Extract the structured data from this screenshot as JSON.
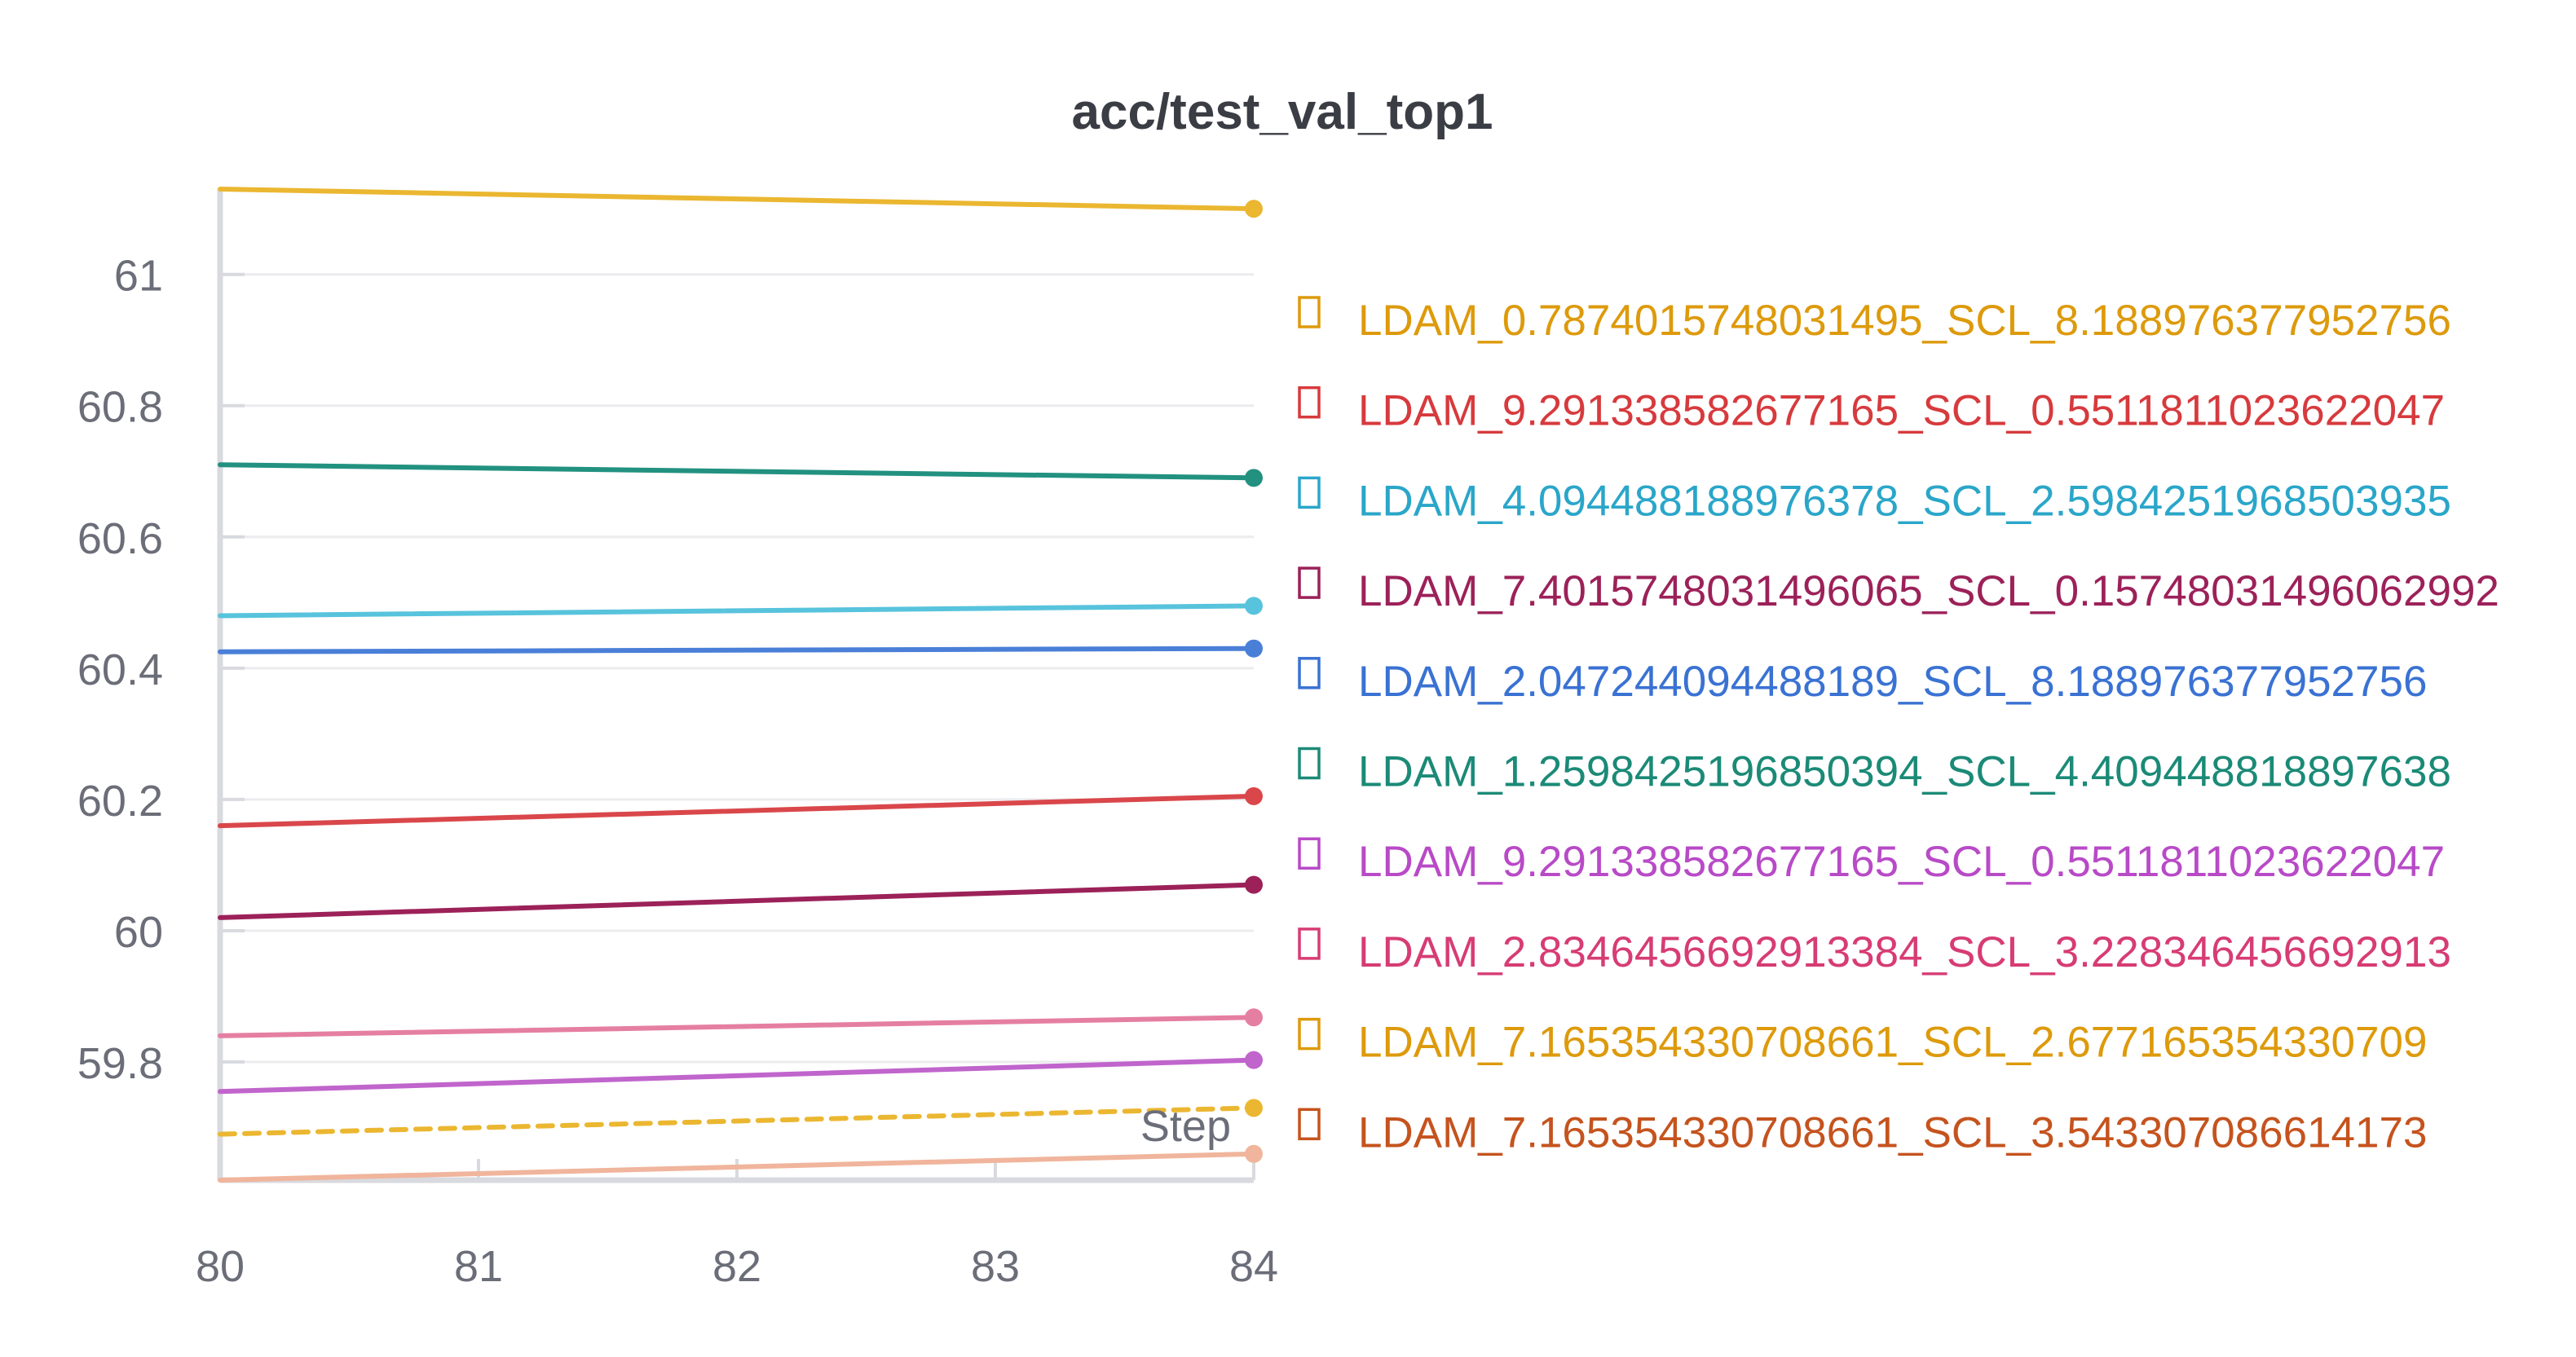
{
  "chart_data": {
    "type": "line",
    "title": "acc/test_val_top1",
    "xlabel": "Step",
    "ylabel": "",
    "xlim": [
      80,
      84
    ],
    "ylim": [
      59.62,
      61.13
    ],
    "x_ticks": [
      80,
      81,
      82,
      83,
      84
    ],
    "y_ticks": [
      59.8,
      60,
      60.2,
      60.4,
      60.6,
      60.8,
      61
    ],
    "y_tick_labels": [
      "59.8",
      "60",
      "60.2",
      "60.4",
      "60.6",
      "60.8",
      "61"
    ],
    "grid": true,
    "legend_position": "right",
    "series": [
      {
        "name": "LDAM_0.7874015748031495_SCL_8.188976377952756",
        "line_color": "#ebb731",
        "text_color": "#dd9a0b",
        "dashed": false,
        "x": [
          80,
          84
        ],
        "y": [
          61.13,
          61.1
        ]
      },
      {
        "name": "LDAM_9.291338582677165_SCL_0.5511811023622047",
        "line_color": "#d9474b",
        "text_color": "#d73a3d",
        "dashed": false,
        "x": [
          80,
          84
        ],
        "y": [
          60.16,
          60.205
        ]
      },
      {
        "name": "LDAM_4.094488188976378_SCL_2.5984251968503935",
        "line_color": "#58c3dc",
        "text_color": "#2aa6c9",
        "dashed": false,
        "x": [
          80,
          84
        ],
        "y": [
          60.48,
          60.495
        ]
      },
      {
        "name": "LDAM_7.4015748031496065_SCL_0.15748031496062992",
        "line_color": "#9c2159",
        "text_color": "#9c2159",
        "dashed": false,
        "x": [
          80,
          84
        ],
        "y": [
          60.02,
          60.07
        ]
      },
      {
        "name": "LDAM_2.047244094488189_SCL_8.188976377952756",
        "line_color": "#4a7fd8",
        "text_color": "#3a72d3",
        "dashed": false,
        "x": [
          80,
          84
        ],
        "y": [
          60.425,
          60.43
        ]
      },
      {
        "name": "LDAM_1.2598425196850394_SCL_4.409448818897638",
        "line_color": "#229180",
        "text_color": "#1b8a77",
        "dashed": false,
        "x": [
          80,
          84
        ],
        "y": [
          60.71,
          60.69
        ]
      },
      {
        "name": "LDAM_9.291338582677165_SCL_0.5511811023622047",
        "line_color": "#c065cc",
        "text_color": "#b84ac7",
        "dashed": false,
        "x": [
          80,
          84
        ],
        "y": [
          59.755,
          59.803
        ]
      },
      {
        "name": "LDAM_2.8346456692913384_SCL_3.228346456692913",
        "line_color": "#e57fa1",
        "text_color": "#d73c74",
        "dashed": false,
        "x": [
          80,
          84
        ],
        "y": [
          59.84,
          59.868
        ]
      },
      {
        "name": "LDAM_7.165354330708661_SCL_2.677165354330709",
        "line_color": "#ebb731",
        "text_color": "#dd9a0b",
        "dashed": true,
        "x": [
          80,
          84
        ],
        "y": [
          59.69,
          59.73
        ]
      },
      {
        "name": "LDAM_7.165354330708661_SCL_3.543307086614173",
        "line_color": "#f0b59c",
        "text_color": "#c5531e",
        "dashed": false,
        "x": [
          80,
          84
        ],
        "y": [
          59.62,
          59.66
        ]
      }
    ]
  }
}
